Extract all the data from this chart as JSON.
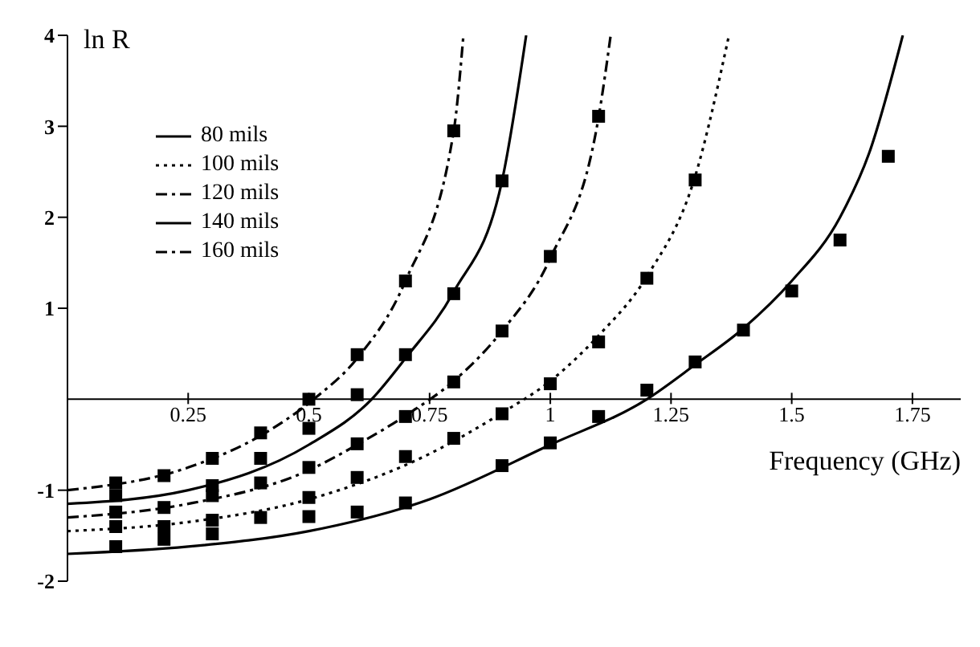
{
  "chart_data": {
    "type": "line",
    "xlabel": "Frequency (GHz)",
    "ylabel": "ln R",
    "xlim": [
      0,
      1.85
    ],
    "xticks": [
      0.25,
      0.5,
      0.75,
      1,
      1.25,
      1.5,
      1.75
    ],
    "ylim": [
      -2,
      4
    ],
    "yticks": [
      -2,
      -1,
      1,
      2,
      3,
      4
    ],
    "legend": "top left",
    "series": [
      {
        "name": "80 mils",
        "color": "#000000",
        "line_style": "solid",
        "x": [
          0,
          0.25,
          0.5,
          0.75,
          1,
          1.2,
          1.3,
          1.4,
          1.5,
          1.6,
          1.66,
          1.73
        ],
        "values": [
          -1.7,
          -1.62,
          -1.45,
          -1.1,
          -0.5,
          0,
          0.38,
          0.78,
          1.3,
          2,
          2.7,
          4
        ]
      },
      {
        "name": "100 mils",
        "color": "#000000",
        "line_style": "dotted",
        "x": [
          0,
          0.25,
          0.5,
          0.75,
          0.9,
          1,
          1.1,
          1.2,
          1.3,
          1.37
        ],
        "values": [
          -1.45,
          -1.35,
          -1.1,
          -0.6,
          -0.15,
          0.2,
          0.7,
          1.35,
          2.45,
          4
        ]
      },
      {
        "name": "120 mils",
        "color": "#000000",
        "line_style": "dashed",
        "x": [
          0,
          0.25,
          0.5,
          0.6,
          0.7,
          0.8,
          0.9,
          1,
          1.1,
          1.125
        ],
        "values": [
          -1.3,
          -1.15,
          -0.78,
          -0.5,
          -0.18,
          0.2,
          0.75,
          1.55,
          3.1,
          4
        ]
      },
      {
        "name": "140 mils",
        "color": "#000000",
        "line_style": "solid",
        "x": [
          0,
          0.25,
          0.5,
          0.63,
          0.7,
          0.8,
          0.9,
          0.95
        ],
        "values": [
          -1.15,
          -1,
          -0.5,
          0,
          0.45,
          1.18,
          2.4,
          4
        ]
      },
      {
        "name": "160 mils",
        "color": "#000000",
        "line_style": "dashed",
        "x": [
          0,
          0.25,
          0.4,
          0.51,
          0.6,
          0.7,
          0.8,
          0.82
        ],
        "values": [
          -1,
          -0.75,
          -0.4,
          0,
          0.45,
          1.3,
          2.95,
          4
        ]
      },
      {
        "type": "scatter",
        "marker": "square",
        "color": "#000000",
        "x": [
          0.1,
          0.1,
          0.1,
          0.1,
          0.1,
          0.2,
          0.2,
          0.2,
          0.2,
          0.3,
          0.3,
          0.3,
          0.3,
          0.3,
          0.4,
          0.4,
          0.4,
          0.4,
          0.5,
          0.5,
          0.5,
          0.5,
          0.5,
          0.6,
          0.6,
          0.6,
          0.6,
          0.6,
          0.7,
          0.7,
          0.7,
          0.7,
          0.7,
          0.8,
          0.8,
          0.8,
          0.8,
          0.9,
          0.9,
          0.9,
          0.9,
          1,
          1,
          1,
          1.1,
          1.1,
          1.1,
          1.2,
          1.2,
          1.3,
          1.3,
          1.4,
          1.5,
          1.6,
          1.7
        ],
        "values": [
          -0.92,
          -1.06,
          -1.24,
          -1.4,
          -1.62,
          -0.84,
          -1.19,
          -1.4,
          -1.54,
          -0.65,
          -0.95,
          -1.06,
          -1.33,
          -1.48,
          -0.37,
          -0.65,
          -0.92,
          -1.3,
          0,
          -0.32,
          -0.75,
          -1.08,
          -1.29,
          0.49,
          0.05,
          -0.49,
          -0.86,
          -1.24,
          1.3,
          0.49,
          -0.19,
          -0.63,
          -1.14,
          2.95,
          1.16,
          0.19,
          -0.43,
          2.4,
          0.75,
          -0.16,
          -0.73,
          1.57,
          0.17,
          -0.48,
          3.11,
          0.63,
          -0.19,
          1.33,
          0.1,
          2.41,
          0.41,
          0.76,
          1.19,
          1.75,
          2.67
        ]
      }
    ]
  }
}
